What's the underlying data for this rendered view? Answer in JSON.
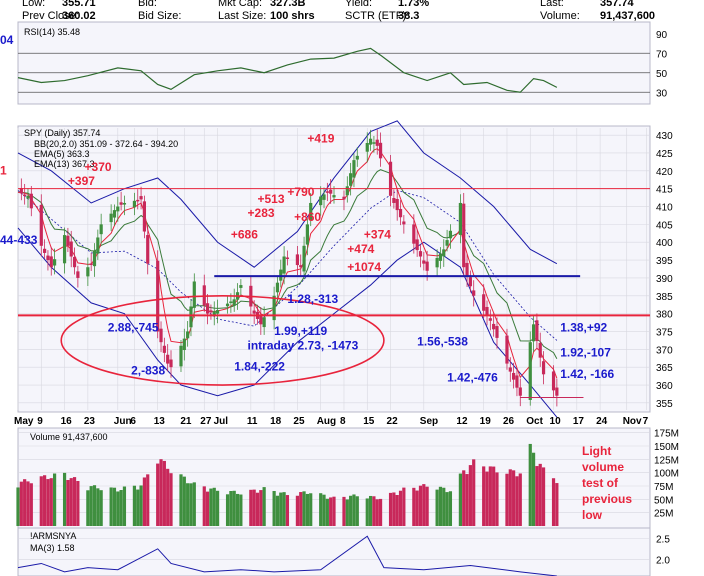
{
  "header": {
    "row1": [
      {
        "label": "Low:",
        "value": "355.71"
      },
      {
        "label": "Bid:",
        "value": ""
      },
      {
        "label": "Mkt Cap:",
        "value": "327.3B"
      },
      {
        "label": "Yield:",
        "value": "1.73%"
      },
      {
        "label": "Last:",
        "value": "357.74"
      }
    ],
    "row2": [
      {
        "label": "Prev Close:",
        "value": "360.02"
      },
      {
        "label": "Bid Size:",
        "value": ""
      },
      {
        "label": "Last Size:",
        "value": "100 shrs"
      },
      {
        "label": "SCTR (ETF):",
        "value": "38.3"
      },
      {
        "label": "Volume:",
        "value": "91,437,600"
      }
    ]
  },
  "colors": {
    "up_bar": "#3f8f3f",
    "down_bar": "#c8285a",
    "bb": "#1a1aa8",
    "ema5": "#e8243c",
    "ema13": "#3a7a3a",
    "annotation_blue": "#1a1acc",
    "annotation_red": "#e8243c",
    "panel_bg": "#f5f5fb",
    "grid": "#d8d8e0"
  },
  "chart_data": [
    {
      "type": "line",
      "panel": "rsi",
      "legend": "RSI(14) 35.48",
      "left_edge_text": "04",
      "ylim": [
        20,
        100
      ],
      "yticks": [
        30,
        50,
        70,
        90
      ],
      "reference_lines": [
        30,
        50,
        70
      ],
      "x_start": "2022-05-02",
      "x_end": "2022-11-08",
      "series": [
        {
          "values": [
            [
              "2022-05-02",
              45
            ],
            [
              "2022-05-09",
              40
            ],
            [
              "2022-05-16",
              42
            ],
            [
              "2022-05-23",
              47
            ],
            [
              "2022-06-01",
              55
            ],
            [
              "2022-06-08",
              52
            ],
            [
              "2022-06-13",
              38
            ],
            [
              "2022-06-17",
              33
            ],
            [
              "2022-06-24",
              48
            ],
            [
              "2022-07-01",
              52
            ],
            [
              "2022-07-08",
              55
            ],
            [
              "2022-07-15",
              50
            ],
            [
              "2022-07-22",
              58
            ],
            [
              "2022-07-29",
              64
            ],
            [
              "2022-08-05",
              65
            ],
            [
              "2022-08-12",
              72
            ],
            [
              "2022-08-16",
              75
            ],
            [
              "2022-08-19",
              68
            ],
            [
              "2022-08-26",
              50
            ],
            [
              "2022-09-02",
              42
            ],
            [
              "2022-09-09",
              50
            ],
            [
              "2022-09-13",
              38
            ],
            [
              "2022-09-20",
              40
            ],
            [
              "2022-09-26",
              32
            ],
            [
              "2022-09-30",
              30
            ],
            [
              "2022-10-04",
              44
            ],
            [
              "2022-10-07",
              42
            ],
            [
              "2022-10-11",
              35
            ]
          ]
        }
      ]
    },
    {
      "type": "candlestick",
      "panel": "price",
      "title": "SPY (Daily) 357.74",
      "legend": [
        {
          "name": "BB(20,2.0) 351.09 - 372.64 - 394.20",
          "color": "#1a1aa8"
        },
        {
          "name": "EMA(5) 363.3",
          "color": "#e8243c"
        },
        {
          "name": "EMA(13) 367.3",
          "color": "#3a7a3a"
        }
      ],
      "left_edge_texts": [
        "1",
        "44-433"
      ],
      "ylim": [
        353,
        432
      ],
      "yticks": [
        355,
        360,
        365,
        370,
        375,
        380,
        385,
        390,
        395,
        400,
        405,
        410,
        415,
        420,
        425,
        430
      ],
      "x_start": "2022-05-02",
      "x_end": "2022-11-08",
      "xticks": [
        "May",
        "9",
        "16",
        "23",
        "Jun",
        "6",
        "13",
        "21",
        "27",
        "Jul",
        "11",
        "18",
        "25",
        "Aug",
        "8",
        "15",
        "22",
        "Sep",
        "12",
        "19",
        "26",
        "Oct",
        "10",
        "17",
        "24",
        "Nov",
        "7"
      ],
      "xtick_dates": [
        "2022-05-02",
        "2022-05-09",
        "2022-05-16",
        "2022-05-23",
        "2022-06-01",
        "2022-06-06",
        "2022-06-13",
        "2022-06-21",
        "2022-06-27",
        "2022-07-01",
        "2022-07-11",
        "2022-07-18",
        "2022-07-25",
        "2022-08-01",
        "2022-08-08",
        "2022-08-15",
        "2022-08-22",
        "2022-09-01",
        "2022-09-12",
        "2022-09-19",
        "2022-09-26",
        "2022-10-03",
        "2022-10-10",
        "2022-10-17",
        "2022-10-24",
        "2022-11-01",
        "2022-11-07"
      ],
      "close_path": [
        [
          "2022-05-02",
          414
        ],
        [
          "2022-05-05",
          413
        ],
        [
          "2022-05-09",
          399
        ],
        [
          "2022-05-12",
          393
        ],
        [
          "2022-05-16",
          402
        ],
        [
          "2022-05-20",
          390
        ],
        [
          "2022-05-24",
          394
        ],
        [
          "2022-05-27",
          405
        ],
        [
          "2022-06-01",
          410
        ],
        [
          "2022-06-03",
          411
        ],
        [
          "2022-06-08",
          412
        ],
        [
          "2022-06-10",
          394
        ],
        [
          "2022-06-13",
          375
        ],
        [
          "2022-06-16",
          366
        ],
        [
          "2022-06-17",
          365
        ],
        [
          "2022-06-22",
          375
        ],
        [
          "2022-06-24",
          389
        ],
        [
          "2022-06-28",
          380
        ],
        [
          "2022-07-01",
          381
        ],
        [
          "2022-07-06",
          384
        ],
        [
          "2022-07-08",
          388
        ],
        [
          "2022-07-12",
          380
        ],
        [
          "2022-07-14",
          377
        ],
        [
          "2022-07-18",
          385
        ],
        [
          "2022-07-21",
          396
        ],
        [
          "2022-07-26",
          393
        ],
        [
          "2022-07-29",
          411
        ],
        [
          "2022-08-03",
          414
        ],
        [
          "2022-08-08",
          412
        ],
        [
          "2022-08-11",
          423
        ],
        [
          "2022-08-16",
          429
        ],
        [
          "2022-08-18",
          427
        ],
        [
          "2022-08-22",
          413
        ],
        [
          "2022-08-26",
          405
        ],
        [
          "2022-08-31",
          396
        ],
        [
          "2022-09-02",
          392
        ],
        [
          "2022-09-07",
          398
        ],
        [
          "2022-09-12",
          411
        ],
        [
          "2022-09-13",
          393
        ],
        [
          "2022-09-16",
          385
        ],
        [
          "2022-09-21",
          378
        ],
        [
          "2022-09-26",
          366
        ],
        [
          "2022-09-30",
          357
        ],
        [
          "2022-10-04",
          377
        ],
        [
          "2022-10-07",
          363
        ],
        [
          "2022-10-11",
          357
        ]
      ],
      "bollinger": {
        "upper": [
          [
            "2022-05-02",
            425
          ],
          [
            "2022-05-12",
            420
          ],
          [
            "2022-05-24",
            411
          ],
          [
            "2022-06-03",
            415
          ],
          [
            "2022-06-13",
            418
          ],
          [
            "2022-06-20",
            412
          ],
          [
            "2022-07-01",
            400
          ],
          [
            "2022-07-12",
            393
          ],
          [
            "2022-07-25",
            403
          ],
          [
            "2022-08-05",
            418
          ],
          [
            "2022-08-16",
            431
          ],
          [
            "2022-08-24",
            434
          ],
          [
            "2022-09-01",
            425
          ],
          [
            "2022-09-12",
            418
          ],
          [
            "2022-09-22",
            410
          ],
          [
            "2022-10-03",
            398
          ],
          [
            "2022-10-11",
            394
          ]
        ],
        "lower": [
          [
            "2022-05-02",
            404
          ],
          [
            "2022-05-12",
            393
          ],
          [
            "2022-05-24",
            383
          ],
          [
            "2022-06-03",
            380
          ],
          [
            "2022-06-13",
            367
          ],
          [
            "2022-06-20",
            360
          ],
          [
            "2022-07-01",
            357
          ],
          [
            "2022-07-12",
            360
          ],
          [
            "2022-07-25",
            372
          ],
          [
            "2022-08-05",
            380
          ],
          [
            "2022-08-16",
            388
          ],
          [
            "2022-08-24",
            395
          ],
          [
            "2022-09-01",
            400
          ],
          [
            "2022-09-12",
            393
          ],
          [
            "2022-09-22",
            372
          ],
          [
            "2022-10-03",
            360
          ],
          [
            "2022-10-11",
            351
          ]
        ]
      },
      "horizontal_lines": [
        {
          "y": 415,
          "color": "#e8243c",
          "width": 1
        },
        {
          "y": 379.5,
          "color": "#e8243c",
          "width": 2
        },
        {
          "y": 390.5,
          "color": "#1a1aa8",
          "width": 2,
          "x_from": "2022-06-30",
          "x_to": "2022-10-18"
        },
        {
          "y": 356.5,
          "color": "#c8285a",
          "width": 1,
          "x_from": "2022-09-30",
          "x_to": "2022-10-19"
        }
      ],
      "annotations_blue": [
        {
          "text": "2.88,-745",
          "at": [
            "2022-05-29",
            375
          ]
        },
        {
          "text": "2,-838",
          "at": [
            "2022-06-05",
            363
          ]
        },
        {
          "text": "1.84,-222",
          "at": [
            "2022-07-06",
            364
          ]
        },
        {
          "text": "intraday 2.73, -1473",
          "at": [
            "2022-07-10",
            370
          ]
        },
        {
          "text": "1.99,+119",
          "at": [
            "2022-07-18",
            374
          ]
        },
        {
          "text": "1.28,-313",
          "at": [
            "2022-07-22",
            383
          ]
        },
        {
          "text": "1.56,-538",
          "at": [
            "2022-08-30",
            371
          ]
        },
        {
          "text": "1.42,-476",
          "at": [
            "2022-09-08",
            361
          ]
        },
        {
          "text": "1.38,+92",
          "at": [
            "2022-10-12",
            375
          ]
        },
        {
          "text": "1.92,-107",
          "at": [
            "2022-10-12",
            368
          ]
        },
        {
          "text": "1.42, -166",
          "at": [
            "2022-10-12",
            362
          ]
        }
      ],
      "annotations_red": [
        {
          "text": "+419",
          "at": [
            "2022-07-28",
            428
          ]
        },
        {
          "text": "+790",
          "at": [
            "2022-07-22",
            413
          ]
        },
        {
          "text": "+513",
          "at": [
            "2022-07-13",
            411
          ]
        },
        {
          "text": "+283",
          "at": [
            "2022-07-10",
            407
          ]
        },
        {
          "text": "+860",
          "at": [
            "2022-07-24",
            406
          ]
        },
        {
          "text": "+686",
          "at": [
            "2022-07-05",
            401
          ]
        },
        {
          "text": "+374",
          "at": [
            "2022-08-14",
            401
          ]
        },
        {
          "text": "+474",
          "at": [
            "2022-08-09",
            397
          ]
        },
        {
          "text": "+1074",
          "at": [
            "2022-08-09",
            392
          ]
        },
        {
          "text": "+397",
          "at": [
            "2022-05-17",
            416
          ]
        },
        {
          "text": "+370",
          "at": [
            "2022-05-22",
            420
          ]
        }
      ]
    },
    {
      "type": "bar",
      "panel": "volume",
      "legend": "Volume 91,437,600",
      "ylim": [
        0,
        180
      ],
      "yticks_labels": [
        "25M",
        "50M",
        "75M",
        "100M",
        "125M",
        "150M",
        "175M"
      ],
      "yticks": [
        25,
        50,
        75,
        100,
        125,
        150,
        175
      ],
      "unit": "millions of shares",
      "x_start": "2022-05-02",
      "x_end": "2022-11-08",
      "values": [
        [
          "2022-05-02",
          85
        ],
        [
          "2022-05-09",
          95
        ],
        [
          "2022-05-16",
          102
        ],
        [
          "2022-05-23",
          78
        ],
        [
          "2022-06-01",
          72
        ],
        [
          "2022-06-08",
          80
        ],
        [
          "2022-06-13",
          135
        ],
        [
          "2022-06-17",
          110
        ],
        [
          "2022-06-24",
          82
        ],
        [
          "2022-07-01",
          70
        ],
        [
          "2022-07-08",
          65
        ],
        [
          "2022-07-15",
          73
        ],
        [
          "2022-07-22",
          62
        ],
        [
          "2022-07-29",
          67
        ],
        [
          "2022-08-05",
          55
        ],
        [
          "2022-08-12",
          60
        ],
        [
          "2022-08-19",
          55
        ],
        [
          "2022-08-26",
          72
        ],
        [
          "2022-09-02",
          80
        ],
        [
          "2022-09-09",
          70
        ],
        [
          "2022-09-13",
          108
        ],
        [
          "2022-09-16",
          125
        ],
        [
          "2022-09-23",
          110
        ],
        [
          "2022-09-30",
          105
        ],
        [
          "2022-10-03",
          154
        ],
        [
          "2022-10-07",
          110
        ],
        [
          "2022-10-11",
          91
        ]
      ]
    },
    {
      "type": "line",
      "panel": "arms",
      "legend": [
        "!ARMSNYA",
        "MA(3) 1.58"
      ],
      "ylim": [
        1.6,
        2.7
      ],
      "yticks": [
        2.0,
        2.5
      ],
      "x_start": "2022-05-02",
      "x_end": "2022-11-08",
      "series": [
        {
          "values": [
            [
              "2022-05-02",
              1.8
            ],
            [
              "2022-05-09",
              1.9
            ],
            [
              "2022-05-16",
              1.7
            ],
            [
              "2022-05-23",
              1.8
            ],
            [
              "2022-06-01",
              1.75
            ],
            [
              "2022-06-13",
              2.25
            ],
            [
              "2022-06-17",
              1.9
            ],
            [
              "2022-06-27",
              1.7
            ],
            [
              "2022-07-08",
              1.75
            ],
            [
              "2022-07-18",
              1.7
            ],
            [
              "2022-08-01",
              1.75
            ],
            [
              "2022-08-15",
              2.55
            ],
            [
              "2022-08-20",
              1.8
            ],
            [
              "2022-09-01",
              1.75
            ],
            [
              "2022-09-15",
              1.85
            ],
            [
              "2022-09-30",
              1.7
            ],
            [
              "2022-10-11",
              1.6
            ]
          ]
        }
      ]
    }
  ],
  "side_note": [
    "Light",
    "volume",
    "test of",
    "previous",
    "low"
  ]
}
